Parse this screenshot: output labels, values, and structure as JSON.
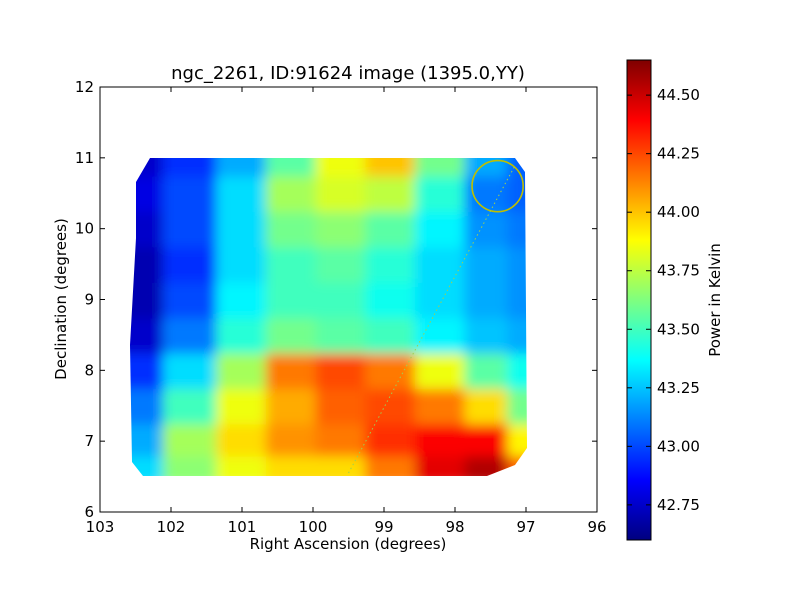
{
  "chart_data": {
    "type": "heatmap",
    "title": "ngc_2261, ID:91624 image (1395.0,YY)",
    "xlabel": "Right Ascension (degrees)",
    "ylabel": "Declination (degrees)",
    "xlim": [
      103,
      96
    ],
    "ylim": [
      6,
      12
    ],
    "x_ticks": [
      103,
      102,
      101,
      100,
      99,
      98,
      97,
      96
    ],
    "y_ticks": [
      6,
      7,
      8,
      9,
      10,
      11,
      12
    ],
    "colorbar": {
      "label": "Power in Kelvin",
      "colormap": "jet",
      "range": [
        42.6,
        44.65
      ],
      "ticks": [
        "42.75",
        "43.00",
        "43.25",
        "43.50",
        "43.75",
        "44.00",
        "44.25",
        "44.50"
      ]
    },
    "map_extent": {
      "ra": [
        102.6,
        96.95
      ],
      "dec": [
        6.5,
        11.0
      ]
    },
    "field_circle": {
      "ra_center": 97.4,
      "dec_center": 10.6,
      "radius_deg": 0.36,
      "color": "#bfbf00"
    },
    "approx_grid": {
      "ra_nodes": [
        102.5,
        101.7,
        101.0,
        100.3,
        99.6,
        98.9,
        98.2,
        97.5,
        97.0
      ],
      "dec_nodes": [
        6.6,
        7.0,
        7.5,
        8.0,
        8.5,
        9.0,
        9.5,
        10.0,
        10.5,
        11.0
      ],
      "values": [
        [
          43.3,
          43.65,
          43.85,
          43.95,
          43.95,
          44.15,
          44.45,
          44.55,
          44.2
        ],
        [
          43.2,
          43.7,
          43.95,
          44.1,
          44.15,
          44.3,
          44.4,
          44.4,
          43.9
        ],
        [
          43.1,
          43.5,
          43.85,
          44.05,
          44.2,
          44.25,
          44.15,
          43.95,
          43.6
        ],
        [
          42.95,
          43.3,
          43.7,
          44.15,
          44.25,
          44.15,
          43.85,
          43.55,
          43.4
        ],
        [
          42.75,
          43.1,
          43.45,
          43.6,
          43.55,
          43.5,
          43.35,
          43.25,
          43.2
        ],
        [
          42.7,
          43.0,
          43.35,
          43.5,
          43.5,
          43.4,
          43.3,
          43.2,
          43.15
        ],
        [
          42.7,
          42.95,
          43.3,
          43.5,
          43.55,
          43.45,
          43.3,
          43.2,
          43.15
        ],
        [
          42.75,
          43.0,
          43.3,
          43.6,
          43.65,
          43.55,
          43.35,
          43.15,
          43.1
        ],
        [
          42.8,
          43.0,
          43.3,
          43.7,
          43.8,
          43.75,
          43.45,
          43.1,
          43.05
        ],
        [
          42.75,
          42.95,
          43.2,
          43.55,
          43.85,
          44.0,
          43.6,
          43.2,
          43.05
        ]
      ]
    }
  }
}
